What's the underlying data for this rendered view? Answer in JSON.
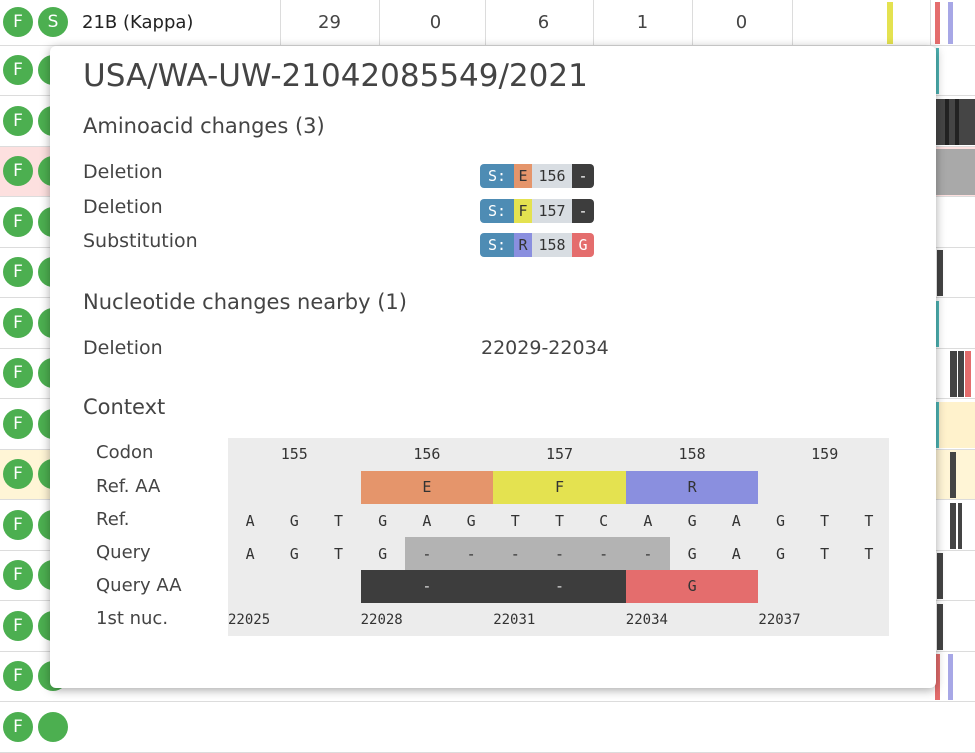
{
  "table": {
    "first_row": {
      "badges": [
        "F",
        "S"
      ],
      "clade": "21B (Kappa)",
      "values": [
        "29",
        "0",
        "6",
        "1",
        "0"
      ]
    },
    "row_badges": [
      "F",
      "F",
      "F",
      "F",
      "F",
      "F",
      "F",
      "F",
      "F",
      "F",
      "F",
      "F",
      "F",
      "F"
    ]
  },
  "popup": {
    "title": "USA/WA-UW-21042085549/2021",
    "aa_section_title": "Aminoacid changes (3)",
    "aa_changes": [
      {
        "type": "Deletion",
        "gene": "S:",
        "ref": "E",
        "pos": "156",
        "qry": "-",
        "ref_color": "#e5956b",
        "qry_color": "#3d3d3d"
      },
      {
        "type": "Deletion",
        "gene": "S:",
        "ref": "F",
        "pos": "157",
        "qry": "-",
        "ref_color": "#e4e250",
        "qry_color": "#3d3d3d"
      },
      {
        "type": "Substitution",
        "gene": "S:",
        "ref": "R",
        "pos": "158",
        "qry": "G",
        "ref_color": "#8a8fdf",
        "qry_color": "#e46d6d"
      }
    ],
    "nuc_section_title": "Nucleotide changes nearby (1)",
    "nuc_changes": [
      {
        "type": "Deletion",
        "range": "22029-22034"
      }
    ],
    "context_title": "Context",
    "context": {
      "row_labels": [
        "Codon",
        "Ref. AA",
        "Ref.",
        "Query",
        "Query AA",
        "1st nuc."
      ],
      "codons": [
        "155",
        "156",
        "157",
        "158",
        "159"
      ],
      "ref_aa": [
        {
          "label": "E",
          "color": "#e5956b"
        },
        {
          "label": "F",
          "color": "#e4e250"
        },
        {
          "label": "R",
          "color": "#8a8fdf"
        }
      ],
      "ref_nuc": [
        "A",
        "G",
        "T",
        "G",
        "A",
        "G",
        "T",
        "T",
        "C",
        "A",
        "G",
        "A",
        "G",
        "T",
        "T"
      ],
      "query_nuc": [
        "A",
        "G",
        "T",
        "G",
        "-",
        "-",
        "-",
        "-",
        "-",
        "-",
        "G",
        "A",
        "G",
        "T",
        "T"
      ],
      "query_aa": [
        {
          "label": "-",
          "color": "#3d3d3d"
        },
        {
          "label": "-",
          "color": "#3d3d3d"
        },
        {
          "label": "G",
          "color": "#e46d6d"
        }
      ],
      "first_nuc": [
        "22025",
        "22028",
        "22031",
        "22034",
        "22037"
      ],
      "gap_color": "#b3b3b3"
    }
  }
}
